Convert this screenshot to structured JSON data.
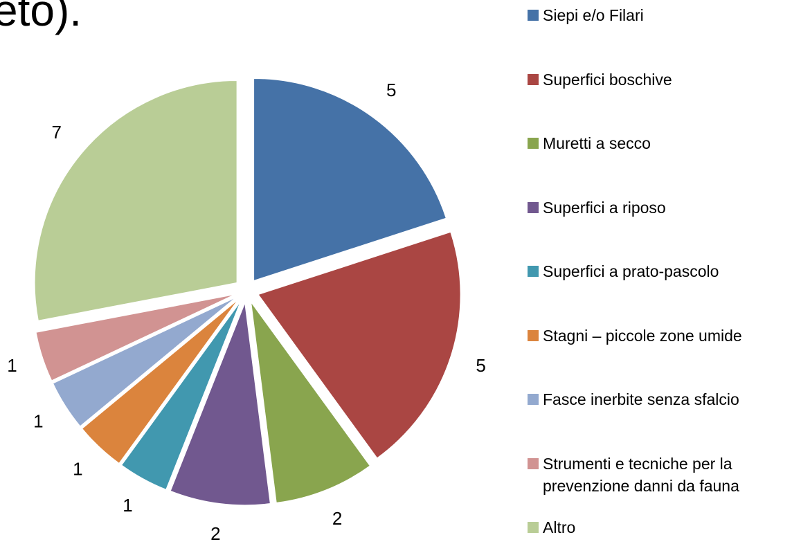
{
  "chart_data": {
    "type": "pie",
    "title": "eto).",
    "categories": [
      "Siepi e/o Filari",
      "Superfici boschive",
      "Muretti a secco",
      "Superfici a riposo",
      "Superfici a prato-pascolo",
      "Stagni – piccole zone umide",
      "Fasce inerbite senza sfalcio",
      "Strumenti e tecniche per la prevenzione danni da fauna",
      "Altro"
    ],
    "values": [
      5,
      5,
      2,
      2,
      1,
      1,
      1,
      1,
      7
    ],
    "colors": [
      "#4572a7",
      "#aa4643",
      "#89a54e",
      "#71588f",
      "#4198af",
      "#db843d",
      "#93a9cf",
      "#d19392",
      "#b9cd96"
    ],
    "legend": "right"
  }
}
